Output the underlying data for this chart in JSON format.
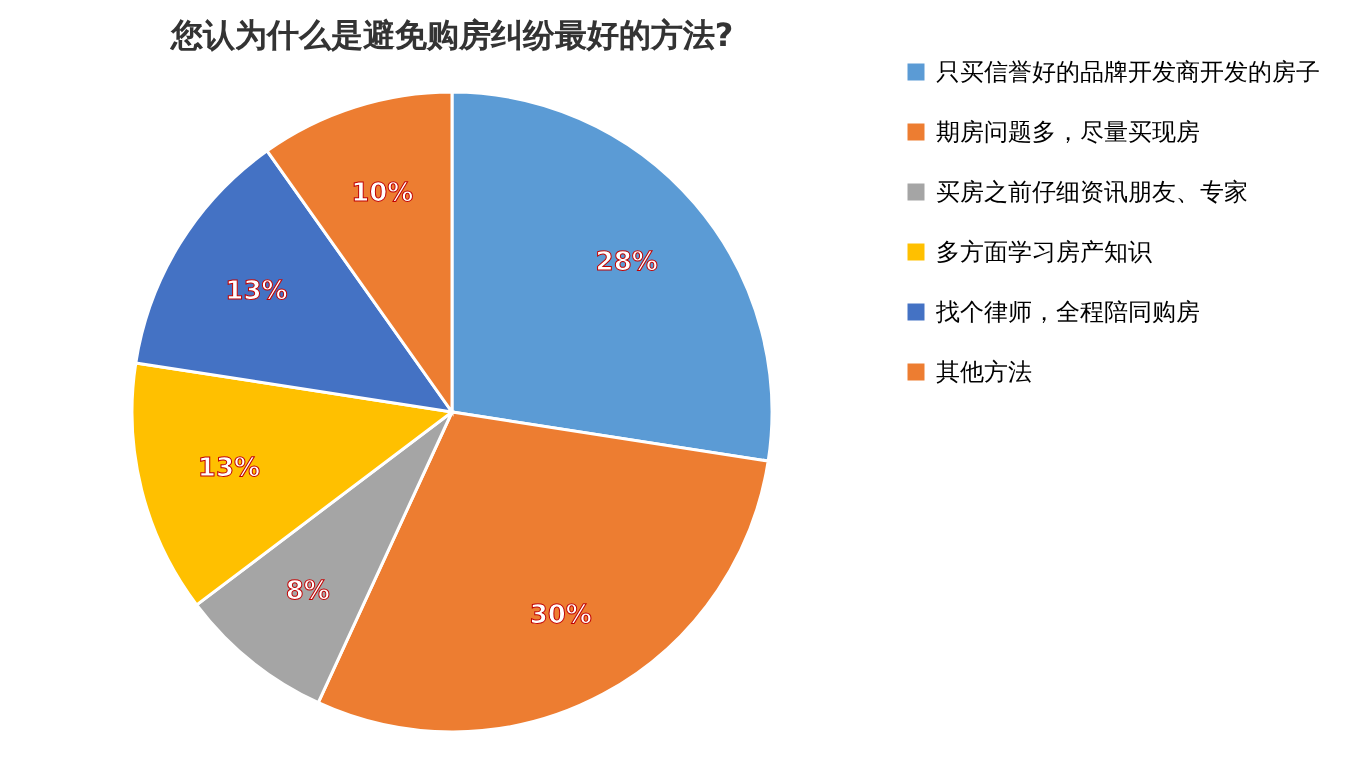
{
  "chart_data": {
    "type": "pie",
    "title": "您认为什么是避免购房纠纷最好的方法?",
    "categories": [
      "只买信誉好的品牌开发商开发的房子",
      "期房问题多，尽量买现房",
      "买房之前仔细资讯朋友、专家",
      "多方面学习房产知识",
      "找个律师，全程陪同购房",
      "其他方法"
    ],
    "values": [
      28,
      30,
      8,
      13,
      13,
      10
    ],
    "colors": [
      "#5b9bd5",
      "#ed7d31",
      "#a5a5a5",
      "#ffc000",
      "#4472c4",
      "#ed7d31"
    ],
    "value_labels": [
      "28%",
      "30%",
      "8%",
      "13%",
      "13%",
      "10%"
    ],
    "legend": "right"
  }
}
